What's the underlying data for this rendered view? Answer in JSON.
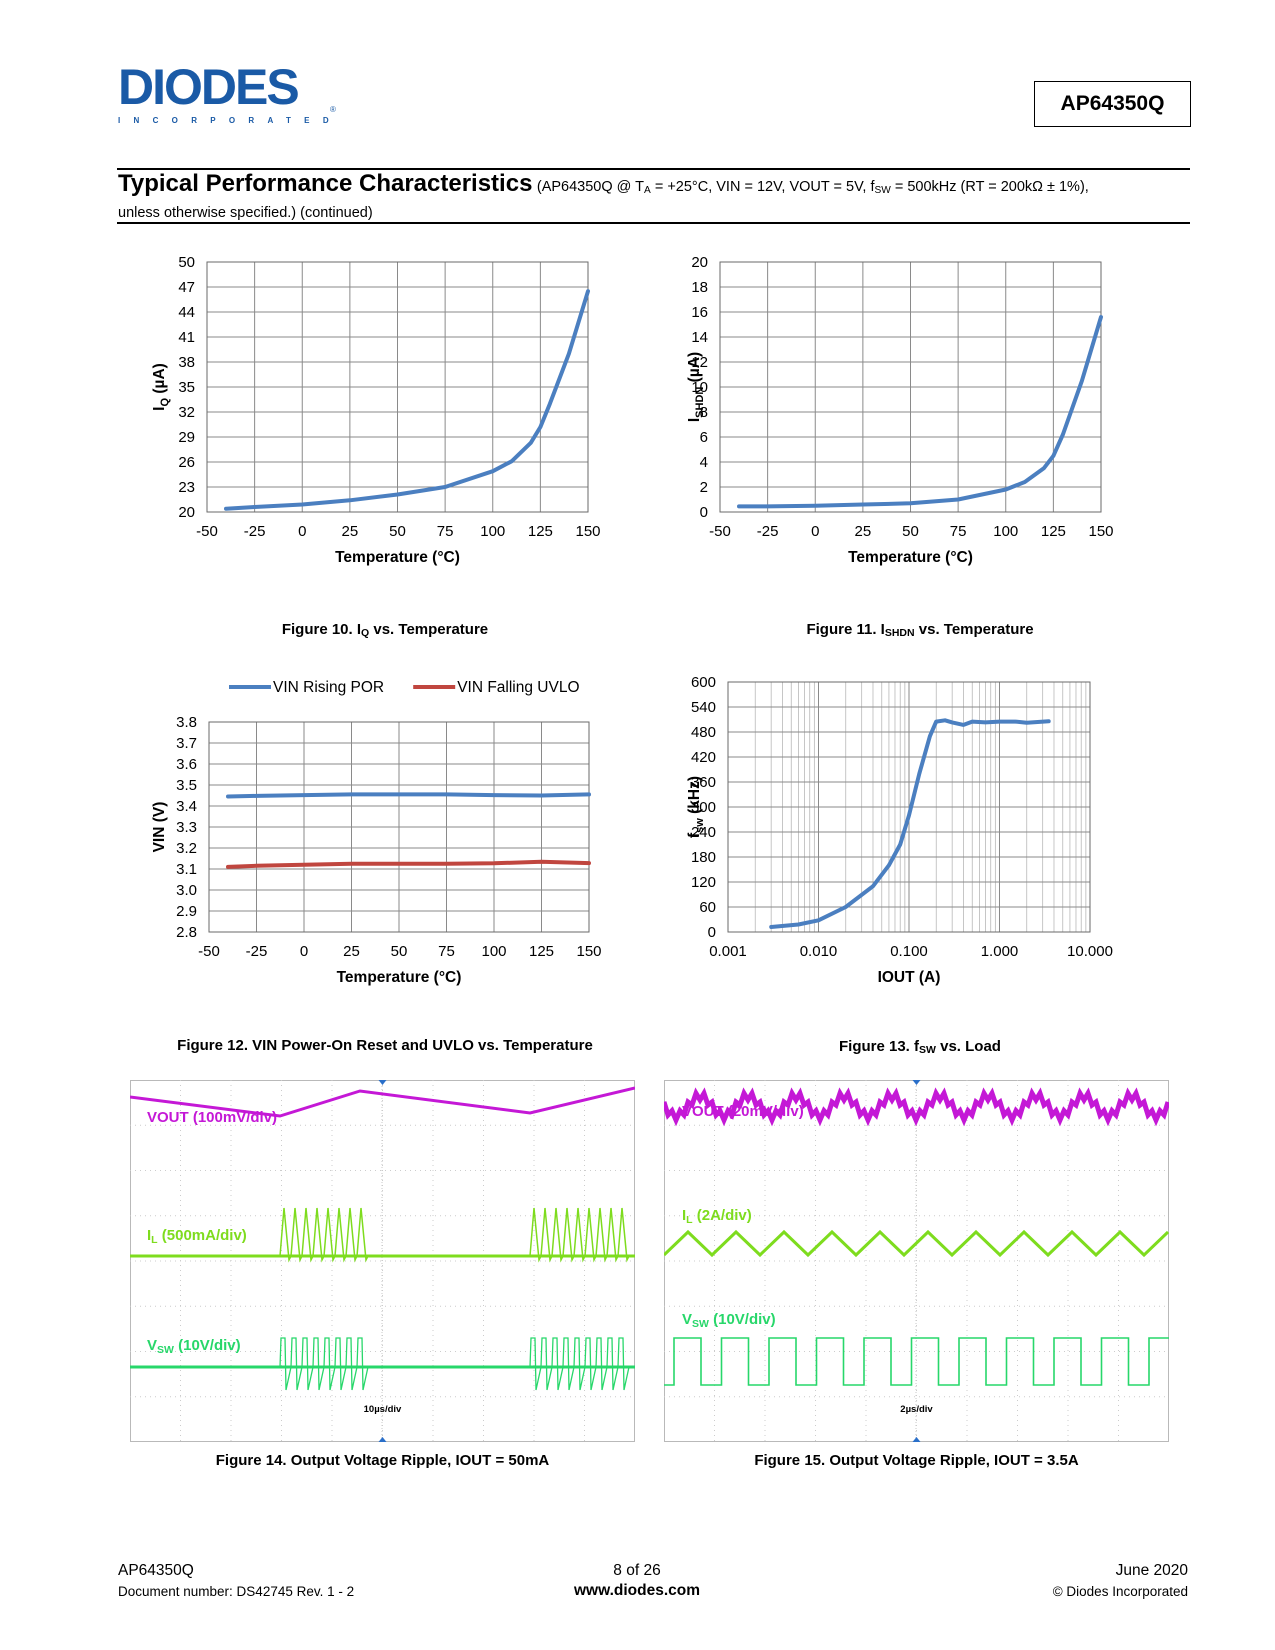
{
  "header": {
    "logo_text": "DIODES",
    "logo_subtext": "INCORPORATED",
    "logo_reg": "®",
    "part_number": "AP64350Q"
  },
  "section": {
    "title": "Typical Performance Characteristics",
    "conditions_a": "(AP64350Q @ T",
    "conditions_sub_a": "A",
    "conditions_b": " = +25°C, VIN = 12V, VOUT = 5V, f",
    "conditions_sub_b": "SW",
    "conditions_c": " = 500kHz (RT = 200kΩ ± 1%),",
    "conditions_line2": "unless otherwise specified.) (continued)"
  },
  "colors": {
    "series_blue": "#4b7fc0",
    "series_red": "#c0463f",
    "scope_magenta": "#c418d6",
    "scope_lime": "#7edc1e",
    "scope_green": "#27d76a",
    "logo_blue": "#1a5aa6"
  },
  "chart_data": [
    {
      "id": "fig10",
      "type": "line",
      "caption_prefix": "Figure 10. I",
      "caption_sub": "Q",
      "caption_suffix": " vs. Temperature",
      "ylabel_main": "I",
      "ylabel_sub": "Q",
      "ylabel_rest": " (µA)",
      "xlabel": "Temperature (°C)",
      "xlim": [
        -50,
        150
      ],
      "ylim": [
        20,
        50
      ],
      "xticks": [
        "-50",
        "-25",
        "0",
        "25",
        "50",
        "75",
        "100",
        "125",
        "150"
      ],
      "yticks": [
        "20",
        "23",
        "26",
        "29",
        "32",
        "35",
        "38",
        "41",
        "44",
        "47",
        "50"
      ],
      "series": [
        {
          "name": "IQ",
          "color": "#4b7fc0",
          "x": [
            -40,
            -25,
            0,
            25,
            50,
            75,
            100,
            110,
            120,
            125,
            130,
            140,
            150
          ],
          "y": [
            20.4,
            20.6,
            20.9,
            21.4,
            22.1,
            23.0,
            24.9,
            26.1,
            28.3,
            30.2,
            33.0,
            39.0,
            46.5
          ]
        }
      ]
    },
    {
      "id": "fig11",
      "type": "line",
      "caption_prefix": "Figure 11. I",
      "caption_sub": "SHDN",
      "caption_suffix": " vs. Temperature",
      "ylabel_main": "I",
      "ylabel_sub": "SHDN",
      "ylabel_rest": " (µA)",
      "xlabel": "Temperature (°C)",
      "xlim": [
        -50,
        150
      ],
      "ylim": [
        0,
        20
      ],
      "xticks": [
        "-50",
        "-25",
        "0",
        "25",
        "50",
        "75",
        "100",
        "125",
        "150"
      ],
      "yticks": [
        "0",
        "2",
        "4",
        "6",
        "8",
        "10",
        "12",
        "14",
        "16",
        "18",
        "20"
      ],
      "series": [
        {
          "name": "ISHDN",
          "color": "#4b7fc0",
          "x": [
            -40,
            -25,
            0,
            25,
            50,
            75,
            100,
            110,
            120,
            125,
            130,
            140,
            150
          ],
          "y": [
            0.45,
            0.45,
            0.5,
            0.6,
            0.7,
            1.0,
            1.8,
            2.4,
            3.5,
            4.5,
            6.2,
            10.5,
            15.6
          ]
        }
      ]
    },
    {
      "id": "fig12",
      "type": "line",
      "caption": "Figure 12. VIN Power-On Reset and UVLO vs. Temperature",
      "ylabel": "VIN (V)",
      "xlabel": "Temperature (°C)",
      "xlim": [
        -50,
        150
      ],
      "ylim": [
        2.8,
        3.8
      ],
      "xticks": [
        "-50",
        "-25",
        "0",
        "25",
        "50",
        "75",
        "100",
        "125",
        "150"
      ],
      "yticks": [
        "2.8",
        "2.9",
        "3.0",
        "3.1",
        "3.2",
        "3.3",
        "3.4",
        "3.5",
        "3.6",
        "3.7",
        "3.8"
      ],
      "legend": "top",
      "series": [
        {
          "name": "VIN Rising POR",
          "color": "#4b7fc0",
          "x": [
            -40,
            -25,
            0,
            25,
            50,
            75,
            100,
            125,
            150
          ],
          "y": [
            3.445,
            3.448,
            3.452,
            3.455,
            3.455,
            3.455,
            3.452,
            3.45,
            3.455
          ]
        },
        {
          "name": "VIN Falling UVLO",
          "color": "#c0463f",
          "x": [
            -40,
            -25,
            0,
            25,
            50,
            75,
            100,
            125,
            150
          ],
          "y": [
            3.11,
            3.115,
            3.12,
            3.125,
            3.125,
            3.125,
            3.127,
            3.135,
            3.128
          ]
        }
      ]
    },
    {
      "id": "fig13",
      "type": "line",
      "xscale": "log",
      "caption_prefix": "Figure 13. f",
      "caption_sub": "SW",
      "caption_suffix": " vs. Load",
      "ylabel_main": "f",
      "ylabel_sub": "sw",
      "ylabel_rest": " (kHz)",
      "xlabel": "IOUT (A)",
      "xlim": [
        0.001,
        10
      ],
      "ylim": [
        0,
        600
      ],
      "xticks": [
        "0.001",
        "0.010",
        "0.100",
        "1.000",
        "10.000"
      ],
      "yticks": [
        "0",
        "60",
        "120",
        "180",
        "240",
        "300",
        "360",
        "420",
        "480",
        "540",
        "600"
      ],
      "series": [
        {
          "name": "fSW",
          "color": "#4b7fc0",
          "x": [
            0.003,
            0.006,
            0.01,
            0.02,
            0.04,
            0.06,
            0.08,
            0.1,
            0.13,
            0.17,
            0.2,
            0.25,
            0.3,
            0.4,
            0.5,
            0.7,
            1.0,
            1.5,
            2.0,
            3.5
          ],
          "y": [
            12,
            18,
            28,
            60,
            110,
            160,
            210,
            280,
            380,
            470,
            505,
            508,
            503,
            497,
            505,
            503,
            505,
            505,
            502,
            506
          ]
        }
      ]
    }
  ],
  "scopes": [
    {
      "id": "fig14",
      "caption": "Figure 14. Output Voltage Ripple, IOUT = 50mA",
      "timebase": "10µs/div",
      "vout_label": "VOUT (100mV/div)",
      "il_main": "I",
      "il_sub": "L",
      "il_rest": " (500mA/div)",
      "vsw_main": "V",
      "vsw_sub": "SW",
      "vsw_rest": " (10V/div)"
    },
    {
      "id": "fig15",
      "caption": "Figure 15. Output Voltage Ripple, IOUT = 3.5A",
      "timebase": "2µs/div",
      "vout_label": "VOUT (20mV/div)",
      "il_main": "I",
      "il_sub": "L",
      "il_rest": " (2A/div)",
      "vsw_main": "V",
      "vsw_sub": "SW",
      "vsw_rest": " (10V/div)"
    }
  ],
  "footer": {
    "left_part": "AP64350Q",
    "left_doc": "Document number: DS42745 Rev. 1 - 2",
    "center_page": "8 of 26",
    "center_url": "www.diodes.com",
    "right_date": "June 2020",
    "right_copy": "© Diodes Incorporated"
  }
}
